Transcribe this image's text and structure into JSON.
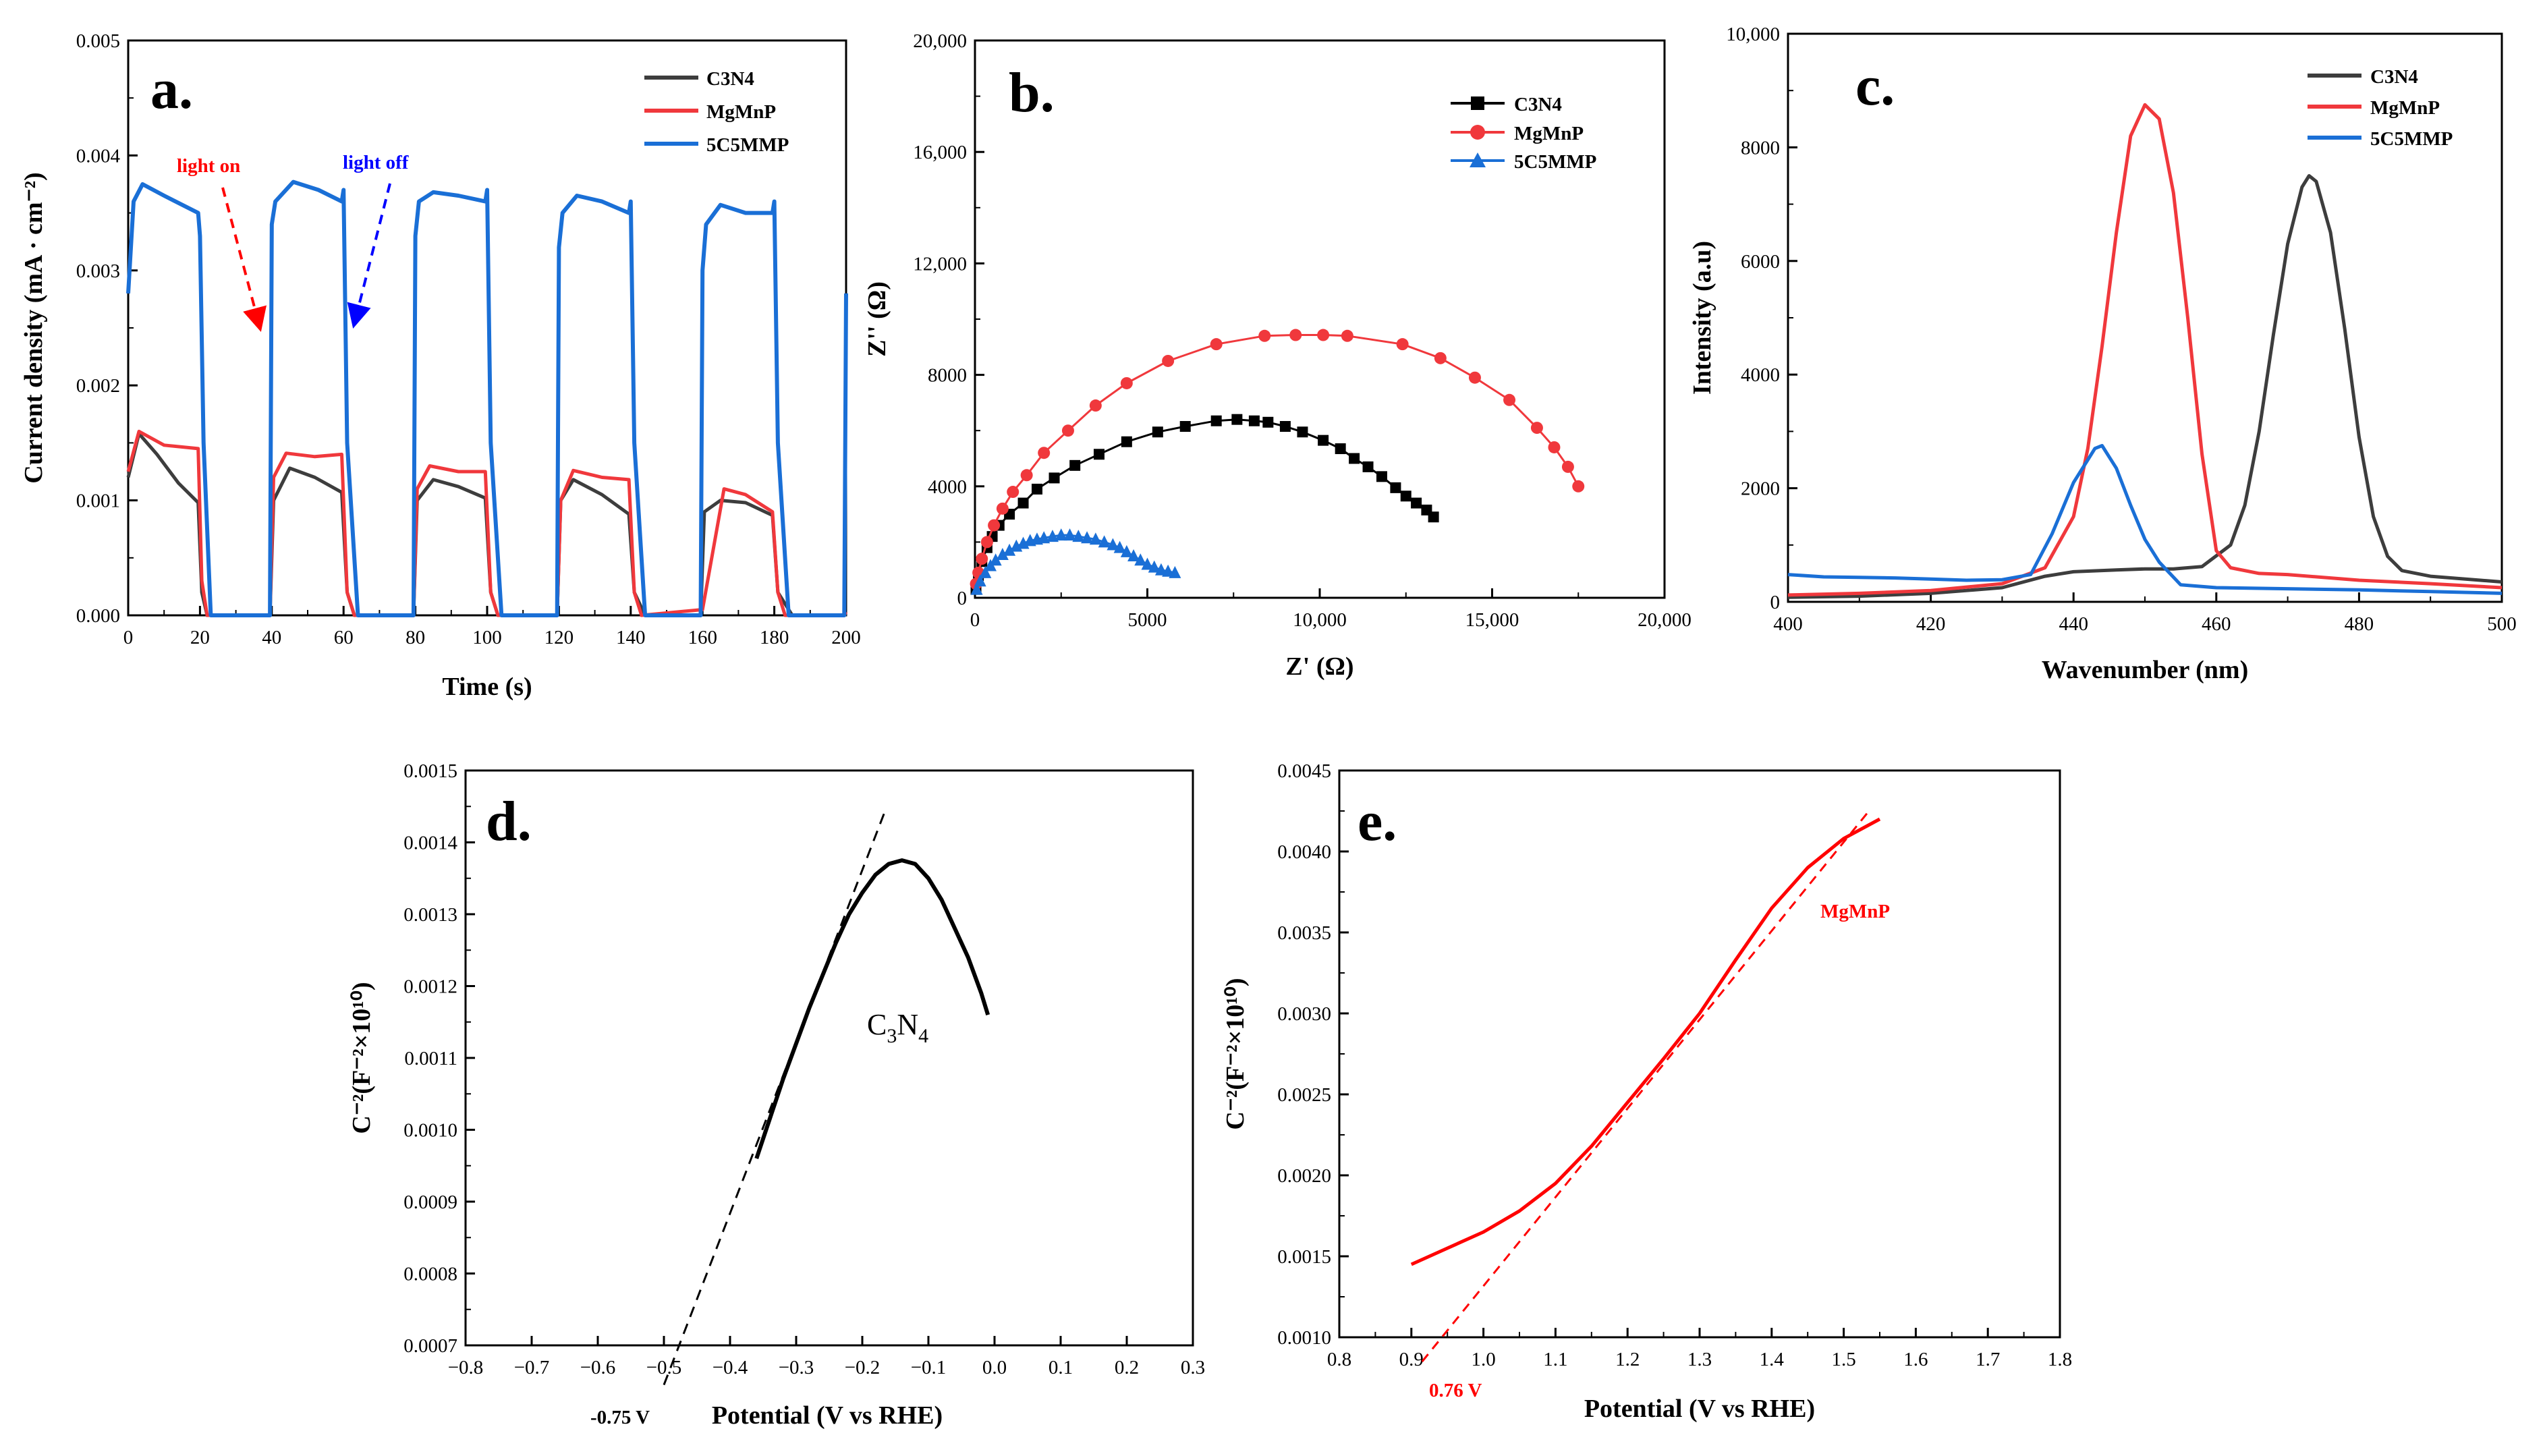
{
  "colors": {
    "c3n4": "#3d3d3d",
    "mgmnp": "#f0383c",
    "mmp": "#1a6fd6",
    "black": "#000000",
    "red": "#ff0000",
    "blue": "#0000ff"
  },
  "panel_a": {
    "letter": "a.",
    "legend": [
      "C3N4",
      "MgMnP",
      "5C5MMP"
    ],
    "annotations": {
      "light_on": "light on",
      "light_off": "light off"
    },
    "chart_data": {
      "type": "line",
      "title": "",
      "xlabel": "Time (s)",
      "ylabel": "Current density (mA · cm⁻²)",
      "xlim": [
        0,
        200
      ],
      "ylim": [
        0,
        0.005
      ],
      "x_ticks": [
        "0",
        "20",
        "40",
        "60",
        "80",
        "100",
        "120",
        "140",
        "160",
        "180",
        "200"
      ],
      "y_ticks": [
        "0.000",
        "0.001",
        "0.002",
        "0.003",
        "0.004",
        "0.005"
      ],
      "light_cycles_on_off": [
        [
          0,
          20
        ],
        [
          40,
          60
        ],
        [
          80,
          100
        ],
        [
          120,
          140
        ],
        [
          160,
          180
        ]
      ],
      "series": [
        {
          "name": "C3N4",
          "x": [
            0,
            3,
            8,
            14,
            19.5,
            20.5,
            22,
            39.5,
            40.5,
            45,
            52,
            59.5,
            61,
            63,
            79.5,
            80.5,
            85,
            92,
            99.5,
            101,
            103,
            119.5,
            120.5,
            124,
            132,
            139.5,
            141,
            144,
            159.5,
            160.5,
            165,
            172,
            179.5,
            181,
            185,
            199.5,
            200
          ],
          "y": [
            0.0012,
            0.00158,
            0.0014,
            0.00115,
            0.00098,
            0.0002,
            0,
            0,
            0.001,
            0.00128,
            0.0012,
            0.00107,
            0.0002,
            0,
            0,
            0.001,
            0.00118,
            0.00112,
            0.00102,
            0.0002,
            0,
            0,
            0.001,
            0.00118,
            0.00105,
            0.00088,
            0.0002,
            0,
            0,
            0.0009,
            0.001,
            0.00098,
            0.00087,
            0.0002,
            0,
            0,
            2e-05
          ]
        },
        {
          "name": "MgMnP",
          "x": [
            0,
            3,
            10,
            19.5,
            20.5,
            22,
            39.5,
            40.5,
            44,
            52,
            59.5,
            61,
            63,
            79.5,
            80.5,
            84,
            92,
            99.5,
            101,
            103,
            119.5,
            120.5,
            124,
            132,
            139.5,
            141,
            143,
            160,
            166,
            172,
            179.5,
            181,
            183,
            199.5,
            200
          ],
          "y": [
            0.00125,
            0.0016,
            0.00148,
            0.00145,
            0.0003,
            0,
            0,
            0.0012,
            0.00141,
            0.00138,
            0.0014,
            0.0002,
            0,
            0,
            0.0011,
            0.0013,
            0.00125,
            0.00125,
            0.0002,
            0,
            0,
            0.001,
            0.00126,
            0.0012,
            0.00118,
            0.0002,
            0,
            5e-05,
            0.0011,
            0.00105,
            0.0009,
            0.0002,
            0,
            0,
            3e-05
          ]
        },
        {
          "name": "5C5MMP",
          "x": [
            0,
            1.5,
            4,
            10,
            19.5,
            20,
            21,
            23,
            39.5,
            40,
            41,
            46,
            53,
            59.5,
            60,
            61,
            64,
            79.5,
            80,
            81,
            85,
            92,
            99.5,
            100,
            101,
            104,
            119.5,
            120,
            121,
            125,
            132,
            139.5,
            140,
            141,
            144,
            159.5,
            160,
            161,
            165,
            172,
            179.5,
            180,
            181,
            184,
            199.5,
            200
          ],
          "y": [
            0.0028,
            0.0036,
            0.00375,
            0.00365,
            0.0035,
            0.0033,
            0.0015,
            0,
            0,
            0.0034,
            0.0036,
            0.00377,
            0.0037,
            0.0036,
            0.0037,
            0.0015,
            0,
            0,
            0.0033,
            0.0036,
            0.00368,
            0.00365,
            0.0036,
            0.0037,
            0.0015,
            0,
            0,
            0.0032,
            0.0035,
            0.00365,
            0.0036,
            0.0035,
            0.0036,
            0.0015,
            0,
            0,
            0.003,
            0.0034,
            0.00357,
            0.0035,
            0.0035,
            0.0036,
            0.0015,
            0,
            0,
            0.0028
          ]
        }
      ]
    }
  },
  "panel_b": {
    "letter": "b.",
    "legend": [
      "C3N4",
      "MgMnP",
      "5C5MMP"
    ],
    "chart_data": {
      "type": "scatter",
      "title": "",
      "xlabel": "Z' (Ω)",
      "ylabel": "Z'' (Ω)",
      "xlim": [
        0,
        20000
      ],
      "ylim": [
        0,
        20000
      ],
      "x_ticks": [
        "0",
        "5000",
        "10,000",
        "15,000",
        "20,000"
      ],
      "y_ticks": [
        "0",
        "4000",
        "8000",
        "12,000",
        "16,000",
        "20,000"
      ],
      "series": [
        {
          "name": "C3N4",
          "marker": "square",
          "x": [
            30,
            100,
            200,
            350,
            500,
            700,
            1000,
            1400,
            1800,
            2300,
            2900,
            3600,
            4400,
            5300,
            6100,
            7000,
            7600,
            8100,
            8500,
            9000,
            9500,
            10100,
            10600,
            11000,
            11400,
            11800,
            12200,
            12500,
            12800,
            13100,
            13300
          ],
          "y": [
            300,
            800,
            1300,
            1800,
            2200,
            2600,
            3000,
            3400,
            3900,
            4300,
            4750,
            5150,
            5600,
            5950,
            6150,
            6350,
            6400,
            6350,
            6300,
            6150,
            5950,
            5650,
            5350,
            5000,
            4700,
            4350,
            3950,
            3650,
            3400,
            3150,
            2900
          ]
        },
        {
          "name": "MgMnP",
          "marker": "circle",
          "x": [
            30,
            100,
            200,
            350,
            550,
            800,
            1100,
            1500,
            2000,
            2700,
            3500,
            4400,
            5600,
            7000,
            8400,
            9300,
            10100,
            10800,
            12400,
            13500,
            14500,
            15500,
            16300,
            16800,
            17200,
            17500
          ],
          "y": [
            500,
            900,
            1400,
            2000,
            2600,
            3200,
            3800,
            4400,
            5200,
            6000,
            6900,
            7700,
            8500,
            9100,
            9400,
            9430,
            9430,
            9400,
            9100,
            8600,
            7900,
            7100,
            6100,
            5400,
            4700,
            4000
          ]
        },
        {
          "name": "5C5MMP",
          "marker": "triangle",
          "x": [
            50,
            150,
            300,
            450,
            600,
            800,
            1000,
            1200,
            1400,
            1600,
            1800,
            2000,
            2250,
            2500,
            2750,
            3000,
            3250,
            3500,
            3750,
            4000,
            4200,
            4400,
            4600,
            4800,
            5000,
            5200,
            5400,
            5600,
            5800
          ],
          "y": [
            300,
            600,
            900,
            1150,
            1350,
            1550,
            1700,
            1850,
            1950,
            2050,
            2100,
            2150,
            2200,
            2250,
            2250,
            2200,
            2150,
            2100,
            2000,
            1900,
            1800,
            1650,
            1500,
            1350,
            1200,
            1100,
            1000,
            950,
            900
          ]
        }
      ]
    }
  },
  "panel_c": {
    "letter": "c.",
    "legend": [
      "C3N4",
      "MgMnP",
      "5C5MMP"
    ],
    "chart_data": {
      "type": "line",
      "title": "",
      "xlabel": "Wavenumber (nm)",
      "ylabel": "Intensity (a.u)",
      "xlim": [
        400,
        500
      ],
      "ylim": [
        0,
        10000
      ],
      "x_ticks": [
        "400",
        "420",
        "440",
        "460",
        "480",
        "500"
      ],
      "y_ticks": [
        "0",
        "2000",
        "4000",
        "6000",
        "8000",
        "10,000"
      ],
      "series": [
        {
          "name": "C3N4",
          "x": [
            400,
            410,
            420,
            430,
            436,
            440,
            446,
            450,
            454,
            458,
            462,
            464,
            466,
            468,
            470,
            472,
            473,
            474,
            476,
            478,
            480,
            482,
            484,
            486,
            490,
            500
          ],
          "y": [
            80,
            100,
            150,
            250,
            450,
            530,
            560,
            580,
            580,
            620,
            1000,
            1700,
            3000,
            4700,
            6300,
            7300,
            7500,
            7400,
            6500,
            4800,
            2900,
            1500,
            800,
            550,
            450,
            350
          ]
        },
        {
          "name": "MgMnP",
          "x": [
            400,
            410,
            420,
            430,
            436,
            440,
            442,
            444,
            446,
            448,
            450,
            452,
            454,
            456,
            458,
            460,
            462,
            466,
            470,
            480,
            490,
            500
          ],
          "y": [
            120,
            150,
            200,
            320,
            600,
            1500,
            2700,
            4500,
            6500,
            8200,
            8750,
            8500,
            7200,
            5000,
            2600,
            900,
            600,
            500,
            480,
            380,
            320,
            250
          ]
        },
        {
          "name": "5C5MMP",
          "x": [
            400,
            405,
            410,
            415,
            420,
            425,
            430,
            434,
            437,
            440,
            442,
            443,
            444,
            445,
            446,
            448,
            450,
            452,
            455,
            460,
            470,
            480,
            490,
            500
          ],
          "y": [
            480,
            440,
            430,
            420,
            400,
            380,
            390,
            480,
            1200,
            2100,
            2500,
            2700,
            2750,
            2550,
            2350,
            1700,
            1100,
            700,
            300,
            250,
            230,
            210,
            180,
            150
          ]
        }
      ]
    }
  },
  "panel_d": {
    "letter": "d.",
    "curve_label_main": "C",
    "curve_label_sub1": "3",
    "curve_label_mid": "N",
    "curve_label_sub2": "4",
    "intercept_label": "-0.75 V",
    "chart_data": {
      "type": "line",
      "title": "",
      "xlabel": "Potential (V vs RHE)",
      "ylabel": "C⁻²(F⁻²×10¹⁰)",
      "xlim": [
        -0.8,
        0.3
      ],
      "ylim": [
        0.0007,
        0.0015
      ],
      "x_ticks": [
        "−0.8",
        "−0.7",
        "−0.6",
        "−0.5",
        "−0.4",
        "−0.3",
        "−0.2",
        "−0.1",
        "0.0",
        "0.1",
        "0.2",
        "0.3"
      ],
      "y_ticks": [
        "0.0007",
        "0.0008",
        "0.0009",
        "0.0010",
        "0.0011",
        "0.0012",
        "0.0013",
        "0.0014",
        "0.0015"
      ],
      "series": [
        {
          "name": "C3N4",
          "style": "solid",
          "x": [
            -0.36,
            -0.34,
            -0.32,
            -0.3,
            -0.28,
            -0.26,
            -0.24,
            -0.22,
            -0.2,
            -0.18,
            -0.16,
            -0.14,
            -0.12,
            -0.1,
            -0.08,
            -0.06,
            -0.04,
            -0.02,
            -0.01
          ],
          "y": [
            0.00096,
            0.001015,
            0.00107,
            0.00112,
            0.00117,
            0.001215,
            0.00126,
            0.0013,
            0.00133,
            0.001355,
            0.00137,
            0.001375,
            0.00137,
            0.00135,
            0.00132,
            0.00128,
            0.00124,
            0.00119,
            0.00116
          ]
        },
        {
          "name": "tangent",
          "style": "dashed",
          "x": [
            -0.5,
            -0.165
          ],
          "y": [
            0.000645,
            0.001445
          ]
        }
      ]
    }
  },
  "panel_e": {
    "letter": "e.",
    "curve_label": "MgMnP",
    "intercept_label": "0.76 V",
    "chart_data": {
      "type": "line",
      "title": "",
      "xlabel": "Potential (V vs RHE)",
      "ylabel": "C⁻²(F⁻²×10¹⁰)",
      "xlim": [
        0.8,
        1.8
      ],
      "ylim": [
        0.001,
        0.0045
      ],
      "x_ticks": [
        "0.8",
        "0.9",
        "1.0",
        "1.1",
        "1.2",
        "1.3",
        "1.4",
        "1.5",
        "1.6",
        "1.7",
        "1.8"
      ],
      "y_ticks": [
        "0.0010",
        "0.0015",
        "0.0020",
        "0.0025",
        "0.0030",
        "0.0035",
        "0.0040",
        "0.0045"
      ],
      "series": [
        {
          "name": "MgMnP",
          "style": "solid",
          "x": [
            0.9,
            0.95,
            1.0,
            1.05,
            1.1,
            1.15,
            1.2,
            1.25,
            1.3,
            1.35,
            1.4,
            1.45,
            1.5,
            1.55
          ],
          "y": [
            0.00145,
            0.00155,
            0.00165,
            0.00178,
            0.00195,
            0.00218,
            0.00245,
            0.00272,
            0.003,
            0.00333,
            0.00365,
            0.0039,
            0.00408,
            0.0042
          ]
        },
        {
          "name": "tangent",
          "style": "dashed",
          "x": [
            0.915,
            1.535
          ],
          "y": [
            0.00085,
            0.00425
          ]
        }
      ]
    }
  }
}
